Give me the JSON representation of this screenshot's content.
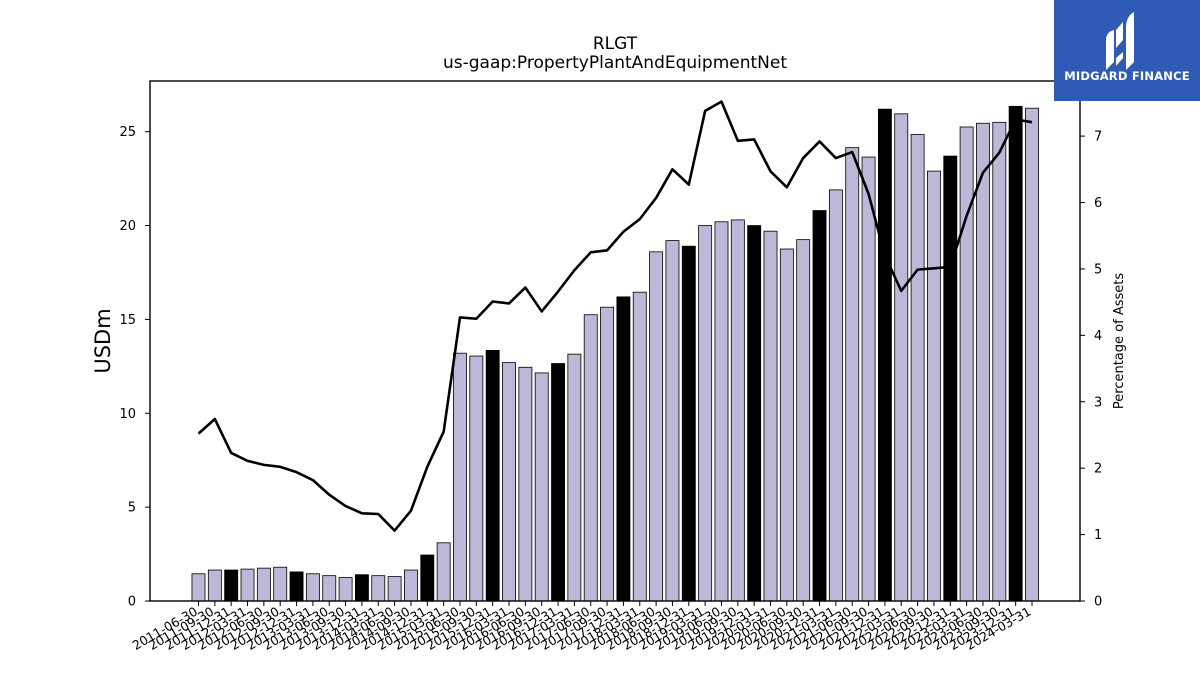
{
  "chart_data": {
    "type": "bar",
    "title": "RLGT",
    "subtitle": "us-gaap:PropertyPlantAndEquipmentNet",
    "ylabel": "USDm",
    "y2label": "Percentage of Assets",
    "ylim": [
      0,
      27.7
    ],
    "y2lim": [
      0,
      7.83
    ],
    "yticks": [
      0,
      5,
      10,
      15,
      20,
      25
    ],
    "y2ticks": [
      0,
      1,
      2,
      3,
      4,
      5,
      6,
      7
    ],
    "grid": false,
    "legend": "none",
    "categories": [
      "2011-06-30",
      "2011-09-30",
      "2011-12-31",
      "2012-03-31",
      "2012-06-30",
      "2012-09-30",
      "2012-12-31",
      "2013-03-31",
      "2013-06-30",
      "2013-09-30",
      "2013-12-31",
      "2014-03-31",
      "2014-06-30",
      "2014-09-30",
      "2014-12-31",
      "2015-03-31",
      "2015-06-30",
      "2015-09-30",
      "2015-12-31",
      "2016-03-31",
      "2016-06-30",
      "2016-09-30",
      "2016-12-31",
      "2017-03-31",
      "2017-06-30",
      "2017-09-30",
      "2017-12-31",
      "2018-03-31",
      "2018-06-30",
      "2018-09-30",
      "2018-12-31",
      "2019-03-31",
      "2019-06-30",
      "2019-09-30",
      "2019-12-31",
      "2020-03-31",
      "2020-06-30",
      "2020-09-30",
      "2020-12-31",
      "2021-03-31",
      "2021-06-30",
      "2021-09-30",
      "2021-12-31",
      "2022-03-31",
      "2022-06-30",
      "2022-09-30",
      "2022-12-31",
      "2023-03-31",
      "2023-06-30",
      "2023-09-30",
      "2023-12-31",
      "2024-03-31"
    ],
    "series": [
      {
        "values": [
          1.45,
          1.65,
          1.65,
          1.7,
          1.75,
          1.8,
          1.55,
          1.45,
          1.35,
          1.25,
          1.4,
          1.35,
          1.3,
          1.65,
          2.45,
          3.1,
          13.2,
          13.05,
          13.35,
          12.7,
          12.45,
          12.15,
          12.65,
          13.15,
          15.25,
          15.65,
          16.2,
          16.45,
          18.6,
          19.2,
          18.9,
          20.0,
          20.2,
          20.3,
          20.0,
          19.7,
          18.75,
          19.25,
          20.8,
          21.9,
          24.15,
          23.65,
          26.2,
          25.95,
          24.85,
          22.9,
          23.7,
          25.25,
          25.45,
          25.5,
          26.35,
          26.25
        ],
        "highlight": [
          false,
          false,
          true,
          false,
          false,
          false,
          true,
          false,
          false,
          false,
          true,
          false,
          false,
          false,
          true,
          false,
          false,
          false,
          true,
          false,
          false,
          false,
          true,
          false,
          false,
          false,
          true,
          false,
          false,
          false,
          true,
          false,
          false,
          false,
          true,
          false,
          false,
          false,
          true,
          false,
          false,
          false,
          true,
          false,
          false,
          false,
          true,
          false,
          false,
          false,
          true,
          false
        ],
        "color": "#bcb8d8",
        "highlight_color": "#000000"
      },
      {
        "type": "line",
        "axis": "right",
        "color": "#000000",
        "values": [
          2.52,
          2.74,
          2.23,
          2.11,
          2.05,
          2.02,
          1.94,
          1.82,
          1.6,
          1.43,
          1.32,
          1.31,
          1.06,
          1.36,
          2.02,
          2.55,
          4.27,
          4.25,
          4.51,
          4.48,
          4.72,
          4.36,
          4.66,
          4.98,
          5.25,
          5.28,
          5.56,
          5.75,
          6.07,
          6.5,
          6.27,
          7.38,
          7.52,
          6.93,
          6.95,
          6.47,
          6.23,
          6.67,
          6.92,
          6.67,
          6.76,
          6.13,
          5.2,
          4.67,
          4.99,
          5.01,
          5.03,
          5.8,
          6.45,
          6.75,
          7.25,
          7.21
        ]
      }
    ]
  },
  "brand": {
    "name": "MIDGARD FINANCE",
    "bg_color": "#2f5bb7",
    "icon": "midgard-logo-icon"
  }
}
